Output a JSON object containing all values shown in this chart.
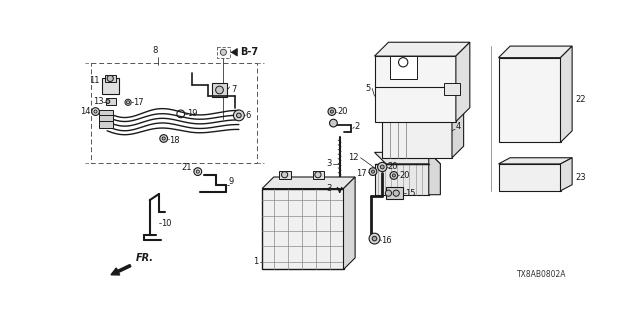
{
  "bg_color": "#ffffff",
  "diagram_code": "TX8AB0802A",
  "lc": "#1a1a1a",
  "figsize": [
    6.4,
    3.2
  ],
  "dpi": 100
}
